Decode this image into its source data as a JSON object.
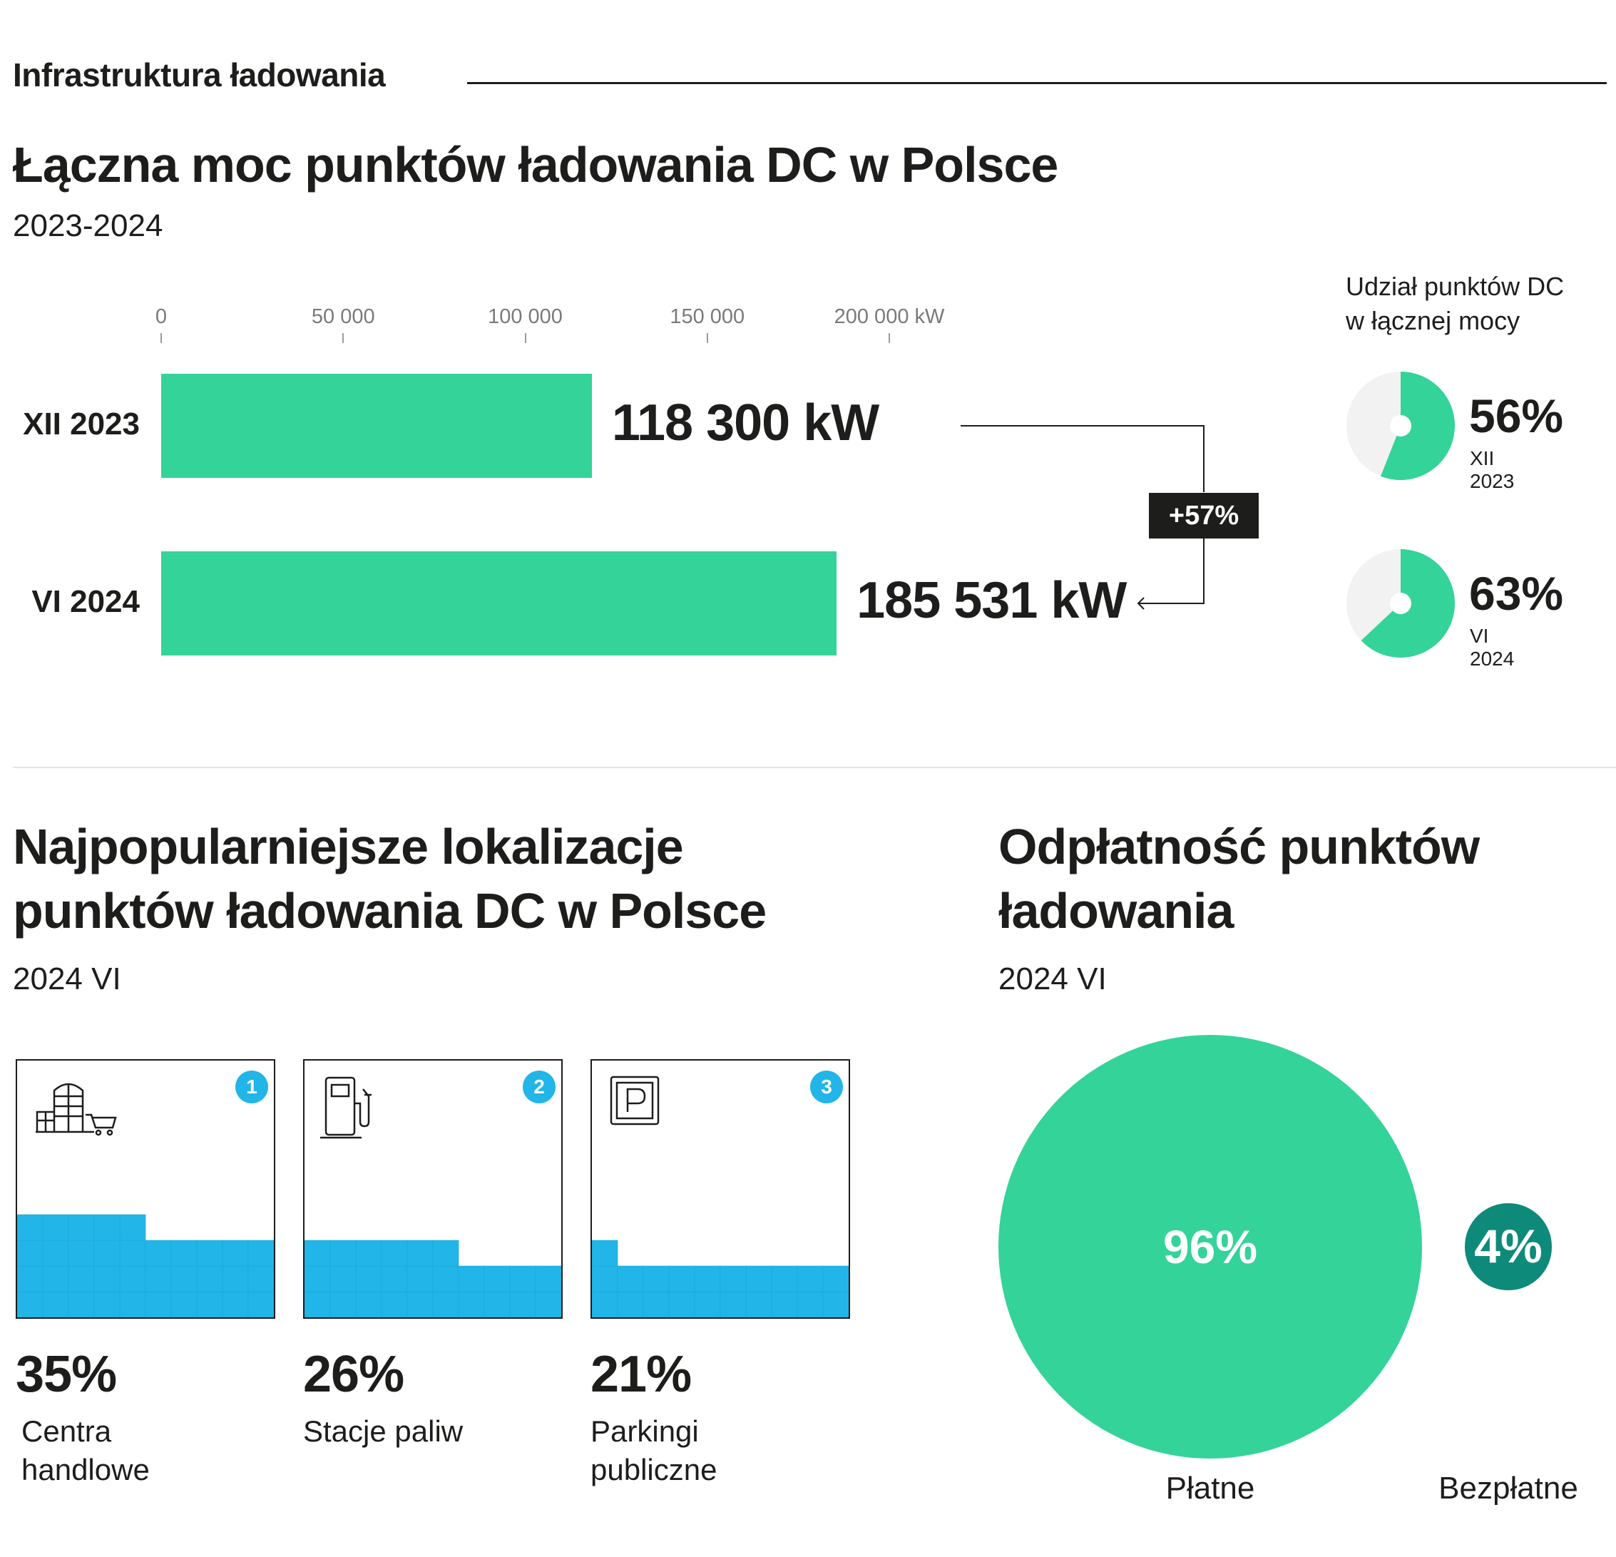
{
  "header": {
    "section_label": "Infrastruktura ładowania"
  },
  "power_chart": {
    "title": "Łączna moc punktów ładowania DC w Polsce",
    "subtitle": "2023-2024",
    "growth_label": "+57%",
    "colors": {
      "bar": "#34d399"
    },
    "donut_title_line1": "Udział punktów DC",
    "donut_title_line2": "w łącznej mocy"
  },
  "locations": {
    "title_line1": "Najpopularniejsze lokalizacje",
    "title_line2": "punktów ładowania DC w Polsce",
    "subtitle": "2024 VI",
    "cards": [
      {
        "rank": "1",
        "icon": "shopping-mall-icon",
        "value": 35,
        "pct_label": "35%",
        "label_line1": "Centra",
        "label_line2": "handlowe"
      },
      {
        "rank": "2",
        "icon": "fuel-pump-icon",
        "value": 26,
        "pct_label": "26%",
        "label_line1": "Stacje paliw",
        "label_line2": ""
      },
      {
        "rank": "3",
        "icon": "parking-sign-icon",
        "value": 21,
        "pct_label": "21%",
        "label_line1": "Parkingi",
        "label_line2": "publiczne"
      }
    ],
    "colors": {
      "fill": "#21b5e8"
    }
  },
  "payment": {
    "title_line1": "Odpłatność punktów",
    "title_line2": "ładowania",
    "subtitle": "2024 VI",
    "colors": {
      "paid": "#34d399",
      "free": "#0e8a7a"
    }
  },
  "chart_data": [
    {
      "type": "bar",
      "orientation": "horizontal",
      "categories": [
        "XII 2023",
        "VI 2024"
      ],
      "values": [
        118300,
        185531
      ],
      "value_labels": [
        "118 300 kW",
        "185 531 kW"
      ],
      "xlim": [
        0,
        200000
      ],
      "ticks": [
        0,
        50000,
        100000,
        150000,
        200000
      ],
      "tick_labels": [
        "0",
        "50 000",
        "100 000",
        "150 000",
        "200 000 kW"
      ]
    },
    {
      "type": "pie",
      "slices": [
        {
          "name": "XII 2023",
          "value": 56,
          "label": "56%"
        },
        {
          "name": "VI 2024",
          "value": 63,
          "label": "63%"
        }
      ]
    },
    {
      "type": "bar",
      "categories": [
        "Centra handlowe",
        "Stacje paliw",
        "Parkingi publiczne"
      ],
      "values": [
        35,
        26,
        21
      ]
    },
    {
      "type": "bubble",
      "categories": [
        "Płatne",
        "Bezpłatne"
      ],
      "values": [
        96,
        4
      ],
      "value_labels": [
        "96%",
        "4%"
      ]
    }
  ]
}
